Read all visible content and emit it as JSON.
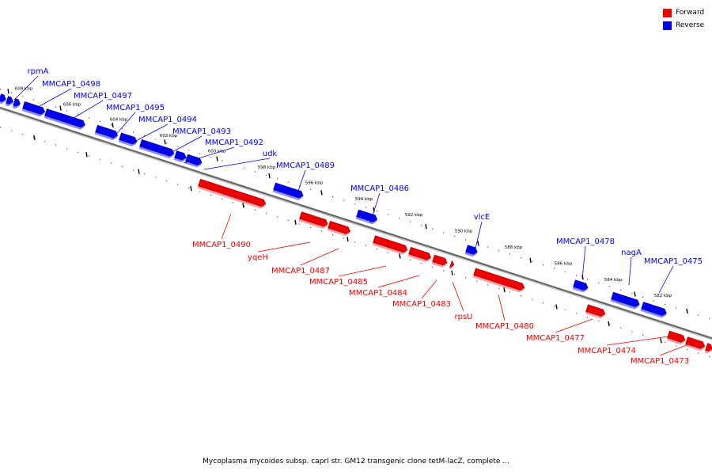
{
  "legend": {
    "forward_label": "Forward",
    "reverse_label": "Reverse",
    "forward_color": "#ee0000",
    "reverse_color": "#0000ee"
  },
  "caption": "Mycoplasma mycoides subsp. capri str. GM12 transgenic clone tetM-lacZ, complete ...",
  "ticks": [
    "608 kbp",
    "606 kbp",
    "604 kbp",
    "602 kbp",
    "600 kbp",
    "598 kbp",
    "596 kbp",
    "594 kbp",
    "592 kbp",
    "590 kbp",
    "588 kbp",
    "586 kbp",
    "584 kbp",
    "582 kbp"
  ],
  "reverse_genes": [
    "rpmA",
    "MMCAP1_0498",
    "MMCAP1_0497",
    "MMCAP1_0495",
    "MMCAP1_0494",
    "MMCAP1_0493",
    "MMCAP1_0492",
    "udk",
    "MMCAP1_0489",
    "MMCAP1_0486",
    "vlcE",
    "MMCAP1_0478",
    "nagA",
    "MMCAP1_0475"
  ],
  "forward_genes": [
    "MMCAP1_0490",
    "yqeH",
    "MMCAP1_0487",
    "MMCAP1_0485",
    "MMCAP1_0484",
    "MMCAP1_0483",
    "rpsU",
    "MMCAP1_0480",
    "MMCAP1_0477",
    "MMCAP1_0474",
    "MMCAP1_0473"
  ]
}
